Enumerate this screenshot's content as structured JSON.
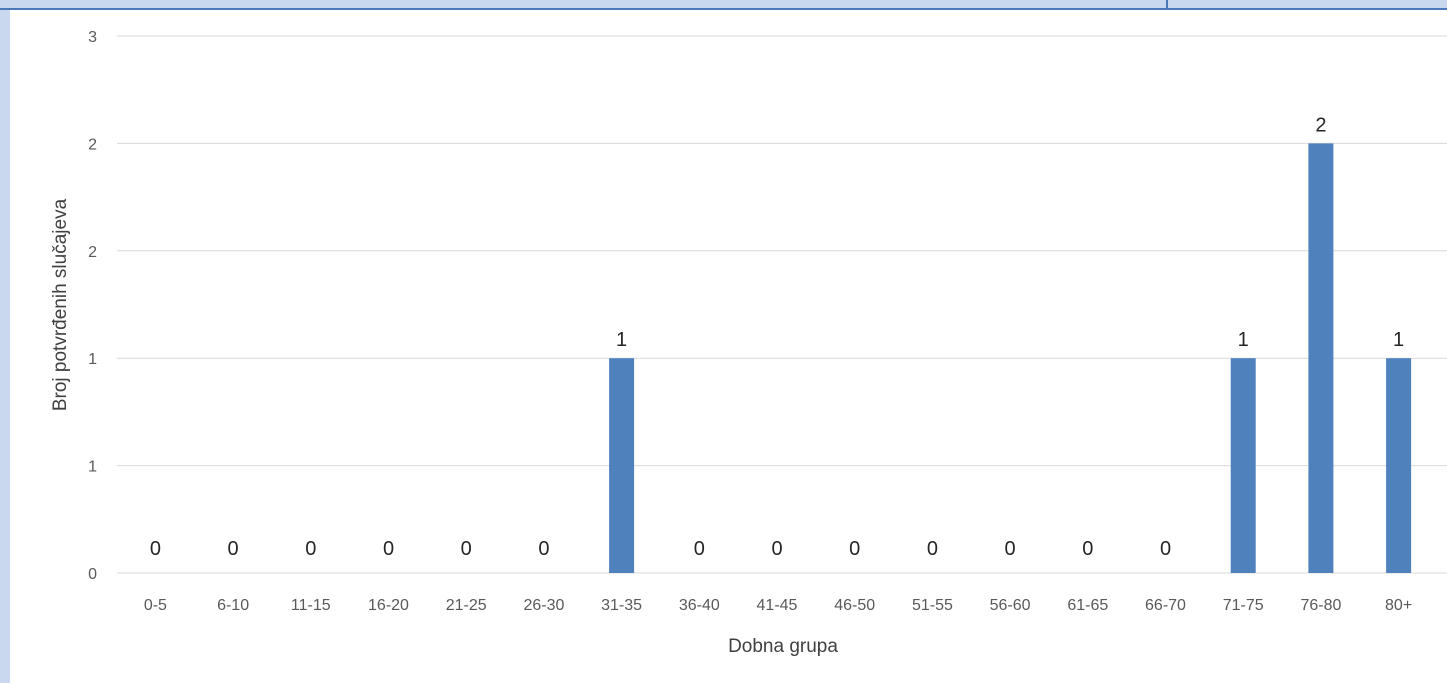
{
  "chart_data": {
    "type": "bar",
    "categories": [
      "0-5",
      "6-10",
      "11-15",
      "16-20",
      "21-25",
      "26-30",
      "31-35",
      "36-40",
      "41-45",
      "46-50",
      "51-55",
      "56-60",
      "61-65",
      "66-70",
      "71-75",
      "76-80",
      "80+"
    ],
    "series": [
      {
        "values": [
          0,
          0,
          0,
          0,
          0,
          0,
          1,
          0,
          0,
          0,
          0,
          0,
          0,
          0,
          1,
          2,
          1
        ],
        "color": "#4f81bd"
      }
    ],
    "data_labels": [
      "0",
      "0",
      "0",
      "0",
      "0",
      "0",
      "1",
      "0",
      "0",
      "0",
      "0",
      "0",
      "0",
      "0",
      "1",
      "2",
      "1"
    ],
    "xlabel": "Dobna grupa",
    "ylabel": "Broj potvrđenih slučajeva",
    "ylim": [
      0,
      2.5
    ],
    "y_ticks": [
      {
        "value": 0,
        "label": "0"
      },
      {
        "value": 0.5,
        "label": "1"
      },
      {
        "value": 1,
        "label": "1"
      },
      {
        "value": 1.5,
        "label": "2"
      },
      {
        "value": 2,
        "label": "2"
      },
      {
        "value": 2.5,
        "label": "3"
      }
    ],
    "grid": true,
    "legend": "none"
  }
}
